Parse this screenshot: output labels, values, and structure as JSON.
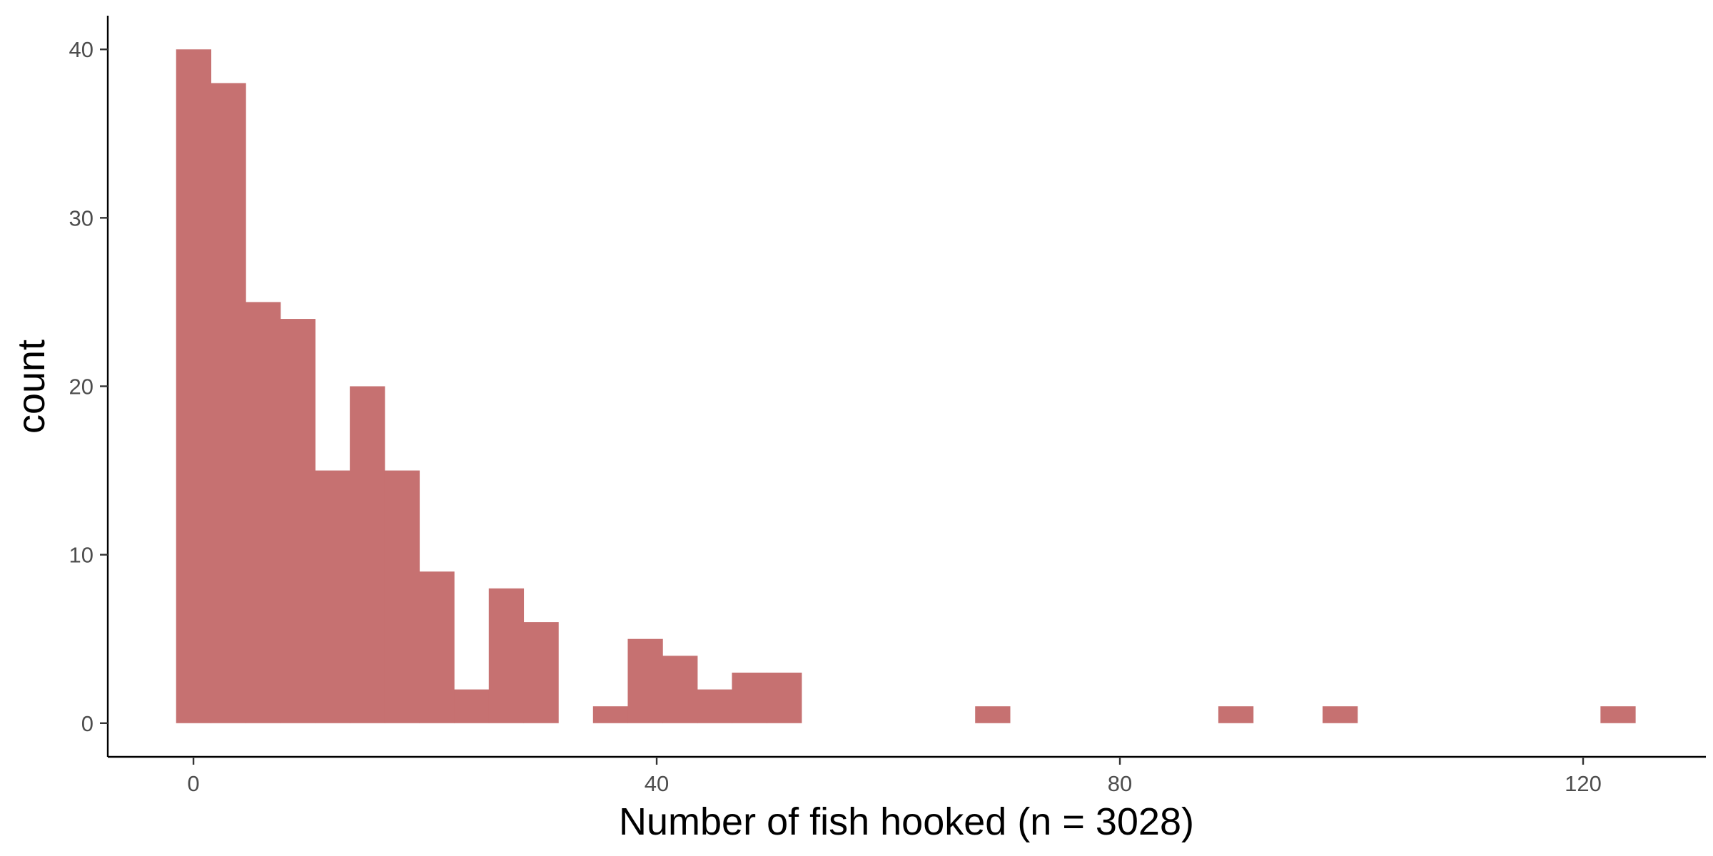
{
  "chart_data": {
    "type": "bar",
    "subtype": "histogram",
    "title": "",
    "xlabel": "Number of fish hooked (n = 3028)",
    "ylabel": "count",
    "bin_width": 3.0,
    "xlim": [
      -7.4,
      130.6
    ],
    "ylim": [
      -2.0,
      42.0
    ],
    "x_ticks": [
      0,
      40,
      80,
      120
    ],
    "y_ticks": [
      0,
      10,
      20,
      30,
      40
    ],
    "bins": [
      {
        "x0": -1.5,
        "x1": 1.5,
        "count": 40
      },
      {
        "x0": 1.5,
        "x1": 4.5,
        "count": 38
      },
      {
        "x0": 4.5,
        "x1": 7.5,
        "count": 25
      },
      {
        "x0": 7.5,
        "x1": 10.5,
        "count": 24
      },
      {
        "x0": 10.5,
        "x1": 13.5,
        "count": 15
      },
      {
        "x0": 13.5,
        "x1": 16.5,
        "count": 20
      },
      {
        "x0": 16.5,
        "x1": 19.5,
        "count": 15
      },
      {
        "x0": 19.5,
        "x1": 22.5,
        "count": 9
      },
      {
        "x0": 22.5,
        "x1": 25.5,
        "count": 2
      },
      {
        "x0": 25.5,
        "x1": 28.5,
        "count": 8
      },
      {
        "x0": 28.5,
        "x1": 31.5,
        "count": 6
      },
      {
        "x0": 31.5,
        "x1": 34.5,
        "count": 0
      },
      {
        "x0": 34.5,
        "x1": 37.5,
        "count": 1
      },
      {
        "x0": 37.5,
        "x1": 40.5,
        "count": 5
      },
      {
        "x0": 40.5,
        "x1": 43.5,
        "count": 4
      },
      {
        "x0": 43.5,
        "x1": 46.5,
        "count": 2
      },
      {
        "x0": 46.5,
        "x1": 49.5,
        "count": 3
      },
      {
        "x0": 49.5,
        "x1": 52.5,
        "count": 3
      },
      {
        "x0": 67.5,
        "x1": 70.5,
        "count": 1
      },
      {
        "x0": 88.5,
        "x1": 91.5,
        "count": 1
      },
      {
        "x0": 97.5,
        "x1": 100.5,
        "count": 1
      },
      {
        "x0": 121.5,
        "x1": 124.5,
        "count": 1
      }
    ],
    "grid": false,
    "legend": "none",
    "bar_color": "#c67171"
  }
}
